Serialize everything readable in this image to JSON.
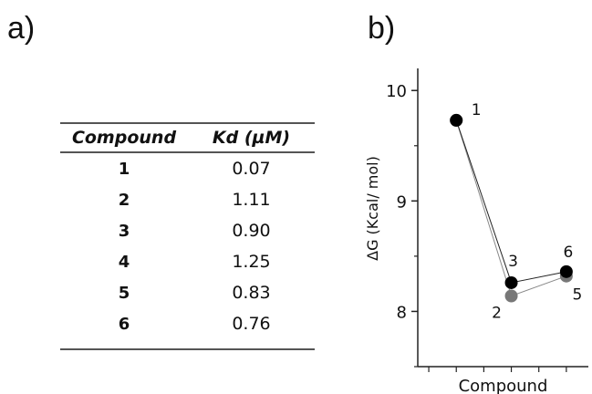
{
  "panels": {
    "a": "a)",
    "b": "b)"
  },
  "table": {
    "headers": {
      "compound": "Compound",
      "kd": "Kd (µM)"
    },
    "rows": [
      {
        "compound": "1",
        "kd": "0.07"
      },
      {
        "compound": "2",
        "kd": "1.11"
      },
      {
        "compound": "3",
        "kd": "0.90"
      },
      {
        "compound": "4",
        "kd": "1.25"
      },
      {
        "compound": "5",
        "kd": "0.83"
      },
      {
        "compound": "6",
        "kd": "0.76"
      }
    ]
  },
  "chart_data": {
    "type": "line",
    "xlabel": "Compound",
    "ylabel": "ΔG (Kcal/ mol)",
    "ylim": [
      7.5,
      10.2
    ],
    "yticks": [
      8,
      9,
      10
    ],
    "x_positions": [
      1,
      2,
      3
    ],
    "xlim": [
      0.3,
      3.4
    ],
    "series": [
      {
        "color": "#000000",
        "points": [
          {
            "x": 1,
            "y": 9.73,
            "label": "1"
          },
          {
            "x": 2,
            "y": 8.26,
            "label": "3"
          },
          {
            "x": 3,
            "y": 8.36,
            "label": "6"
          }
        ]
      },
      {
        "color": "#777777",
        "points": [
          {
            "x": 1,
            "y": 9.73,
            "label": ""
          },
          {
            "x": 2,
            "y": 8.14,
            "label": "2"
          },
          {
            "x": 3,
            "y": 8.32,
            "label": "5"
          }
        ]
      }
    ]
  }
}
